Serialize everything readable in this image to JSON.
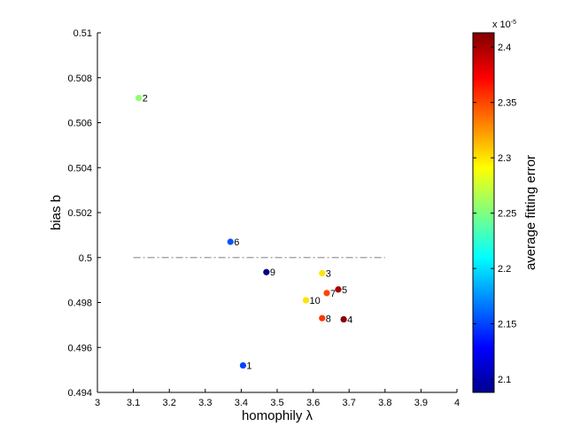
{
  "chart_data": {
    "type": "scatter",
    "xlabel": "homophily λ",
    "ylabel": "bias b",
    "colorbar_label": "average fitting error",
    "colorbar_exponent": "x 10",
    "colorbar_exponent_power": "-5",
    "xlim": [
      3,
      4
    ],
    "ylim": [
      0.494,
      0.51
    ],
    "x_ticks": [
      "3",
      "3.1",
      "3.2",
      "3.3",
      "3.4",
      "3.5",
      "3.6",
      "3.7",
      "3.8",
      "3.9",
      "4"
    ],
    "y_ticks": [
      "0.494",
      "0.496",
      "0.498",
      "0.5",
      "0.502",
      "0.504",
      "0.506",
      "0.508",
      "0.51"
    ],
    "colorbar_range": [
      2.088,
      2.413
    ],
    "colorbar_ticks": [
      "2.1",
      "2.15",
      "2.2",
      "2.25",
      "2.3",
      "2.35",
      "2.4"
    ],
    "reference_line": {
      "y": 0.5,
      "x_start": 3.1,
      "x_end": 3.8,
      "style": "dash-dot"
    },
    "points": [
      {
        "label": "1",
        "x": 3.405,
        "y": 0.4952,
        "color_value": 2.15
      },
      {
        "label": "2",
        "x": 3.115,
        "y": 0.5071,
        "color_value": 2.255
      },
      {
        "label": "3",
        "x": 3.625,
        "y": 0.4993,
        "color_value": 2.3
      },
      {
        "label": "4",
        "x": 3.685,
        "y": 0.49725,
        "color_value": 2.41
      },
      {
        "label": "5",
        "x": 3.67,
        "y": 0.49858,
        "color_value": 2.4
      },
      {
        "label": "6",
        "x": 3.37,
        "y": 0.5007,
        "color_value": 2.155
      },
      {
        "label": "7",
        "x": 3.638,
        "y": 0.49842,
        "color_value": 2.35
      },
      {
        "label": "8",
        "x": 3.625,
        "y": 0.4973,
        "color_value": 2.355
      },
      {
        "label": "9",
        "x": 3.47,
        "y": 0.49935,
        "color_value": 2.09
      },
      {
        "label": "10",
        "x": 3.58,
        "y": 0.4981,
        "color_value": 2.3
      }
    ]
  }
}
